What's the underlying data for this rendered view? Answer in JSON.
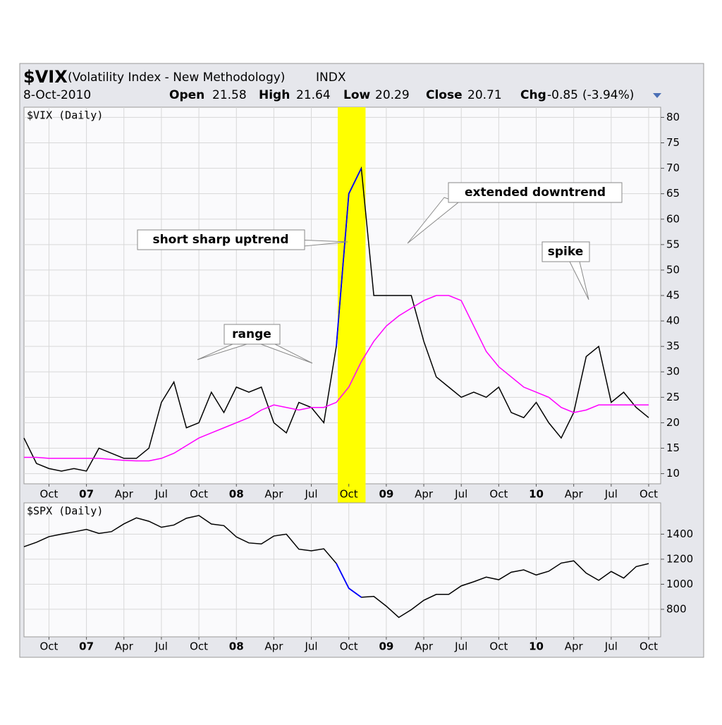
{
  "header": {
    "symbol": "$VIX",
    "name": "(Volatility Index - New Methodology)",
    "exchange": "INDX",
    "date": "8-Oct-2010",
    "open_label": "Open",
    "open": 21.58,
    "high_label": "High",
    "high": 21.64,
    "low_label": "Low",
    "low": 20.29,
    "close_label": "Close",
    "close": 20.71,
    "chg_label": "Chg",
    "chg": -0.85,
    "chg_pct": "(-3.94%)"
  },
  "chart_data": [
    {
      "type": "line",
      "subtitle": "$VIX (Daily)",
      "x": [
        "2006-08",
        "2006-09",
        "2006-10",
        "2006-11",
        "2006-12",
        "2007-01",
        "2007-02",
        "2007-03",
        "2007-04",
        "2007-05",
        "2007-06",
        "2007-07",
        "2007-08",
        "2007-09",
        "2007-10",
        "2007-11",
        "2007-12",
        "2008-01",
        "2008-02",
        "2008-03",
        "2008-04",
        "2008-05",
        "2008-06",
        "2008-07",
        "2008-08",
        "2008-09",
        "2008-10",
        "2008-11",
        "2008-12",
        "2009-01",
        "2009-02",
        "2009-03",
        "2009-04",
        "2009-05",
        "2009-06",
        "2009-07",
        "2009-08",
        "2009-09",
        "2009-10",
        "2009-11",
        "2009-12",
        "2010-01",
        "2010-02",
        "2010-03",
        "2010-04",
        "2010-05",
        "2010-06",
        "2010-07",
        "2010-08",
        "2010-09",
        "2010-10"
      ],
      "series": [
        {
          "color": "#000000",
          "values": [
            17,
            12,
            11,
            10.5,
            11,
            10.5,
            15,
            14,
            13,
            13,
            15,
            24,
            28,
            19,
            20,
            26,
            22,
            27,
            26,
            27,
            20,
            18,
            24,
            23,
            20,
            35,
            65,
            70,
            45,
            45,
            45,
            45,
            36,
            29,
            27,
            25,
            26,
            25,
            27,
            22,
            21,
            24,
            20,
            17,
            22,
            33,
            35,
            24,
            26,
            23,
            21
          ]
        },
        {
          "color": "#ff00ff",
          "values": [
            13.2,
            13.2,
            13,
            13,
            13,
            13,
            13,
            12.8,
            12.6,
            12.5,
            12.5,
            13,
            14,
            15.5,
            17,
            18,
            19,
            20,
            21,
            22.5,
            23.5,
            23,
            22.5,
            23,
            23,
            24,
            27,
            32,
            36,
            39,
            41,
            42.5,
            44,
            45,
            45,
            44,
            39,
            34,
            31,
            29,
            27,
            26,
            25,
            23,
            22,
            22.5,
            23.5,
            23.5,
            23.5,
            23.5,
            23.5
          ]
        }
      ],
      "xlim": [
        "2006-08",
        "2010-10"
      ],
      "xticks": [
        {
          "value": "2006-10",
          "label": "Oct"
        },
        {
          "value": "2007-01",
          "label": "07"
        },
        {
          "value": "2007-04",
          "label": "Apr"
        },
        {
          "value": "2007-07",
          "label": "Jul"
        },
        {
          "value": "2007-10",
          "label": "Oct"
        },
        {
          "value": "2008-01",
          "label": "08"
        },
        {
          "value": "2008-04",
          "label": "Apr"
        },
        {
          "value": "2008-07",
          "label": "Jul"
        },
        {
          "value": "2008-10",
          "label": "Oct"
        },
        {
          "value": "2009-01",
          "label": "09"
        },
        {
          "value": "2009-04",
          "label": "Apr"
        },
        {
          "value": "2009-07",
          "label": "Jul"
        },
        {
          "value": "2009-10",
          "label": "Oct"
        },
        {
          "value": "2010-01",
          "label": "10"
        },
        {
          "value": "2010-04",
          "label": "Apr"
        },
        {
          "value": "2010-07",
          "label": "Jul"
        },
        {
          "value": "2010-10",
          "label": "Oct"
        }
      ],
      "ylim": [
        8,
        82
      ],
      "yticks": [
        10,
        15,
        20,
        25,
        30,
        35,
        40,
        45,
        50,
        55,
        60,
        65,
        70,
        75,
        80
      ],
      "grid": true,
      "highlight": {
        "from": "2008-09",
        "to": "2008-11",
        "color": "#ffff00",
        "line_color": "#0000ff"
      },
      "annotations": [
        {
          "text": "short sharp uptrend",
          "color": "#008000"
        },
        {
          "text": "range",
          "color": "#0000ff"
        },
        {
          "text": "extended downtrend",
          "color": "#ff0000"
        },
        {
          "text": "spike",
          "color": "#ff0000"
        }
      ]
    },
    {
      "type": "line",
      "subtitle": "$SPX (Daily)",
      "x": [
        "2006-08",
        "2006-09",
        "2006-10",
        "2006-11",
        "2006-12",
        "2007-01",
        "2007-02",
        "2007-03",
        "2007-04",
        "2007-05",
        "2007-06",
        "2007-07",
        "2007-08",
        "2007-09",
        "2007-10",
        "2007-11",
        "2007-12",
        "2008-01",
        "2008-02",
        "2008-03",
        "2008-04",
        "2008-05",
        "2008-06",
        "2008-07",
        "2008-08",
        "2008-09",
        "2008-10",
        "2008-11",
        "2008-12",
        "2009-01",
        "2009-02",
        "2009-03",
        "2009-04",
        "2009-05",
        "2009-06",
        "2009-07",
        "2009-08",
        "2009-09",
        "2009-10",
        "2009-11",
        "2009-12",
        "2010-01",
        "2010-02",
        "2010-03",
        "2010-04",
        "2010-05",
        "2010-06",
        "2010-07",
        "2010-08",
        "2010-09",
        "2010-10"
      ],
      "series": [
        {
          "color": "#000000",
          "values": [
            1300,
            1335,
            1380,
            1400,
            1418,
            1438,
            1406,
            1420,
            1482,
            1530,
            1503,
            1455,
            1473,
            1527,
            1549,
            1481,
            1468,
            1378,
            1330,
            1322,
            1385,
            1400,
            1280,
            1267,
            1283,
            1166,
            968,
            896,
            903,
            825,
            735,
            797,
            872,
            919,
            919,
            987,
            1020,
            1057,
            1036,
            1096,
            1115,
            1074,
            1104,
            1169,
            1187,
            1089,
            1031,
            1102,
            1049,
            1141,
            1165
          ]
        }
      ],
      "xlim": [
        "2006-08",
        "2010-10"
      ],
      "xticks": [
        {
          "value": "2006-10",
          "label": "Oct"
        },
        {
          "value": "2007-01",
          "label": "07"
        },
        {
          "value": "2007-04",
          "label": "Apr"
        },
        {
          "value": "2007-07",
          "label": "Jul"
        },
        {
          "value": "2007-10",
          "label": "Oct"
        },
        {
          "value": "2008-01",
          "label": "08"
        },
        {
          "value": "2008-04",
          "label": "Apr"
        },
        {
          "value": "2008-07",
          "label": "Jul"
        },
        {
          "value": "2008-10",
          "label": "Oct"
        },
        {
          "value": "2009-01",
          "label": "09"
        },
        {
          "value": "2009-04",
          "label": "Apr"
        },
        {
          "value": "2009-07",
          "label": "Jul"
        },
        {
          "value": "2009-10",
          "label": "Oct"
        },
        {
          "value": "2010-01",
          "label": "10"
        },
        {
          "value": "2010-04",
          "label": "Apr"
        },
        {
          "value": "2010-07",
          "label": "Jul"
        },
        {
          "value": "2010-10",
          "label": "Oct"
        }
      ],
      "ylim": [
        580,
        1650
      ],
      "yticks": [
        800,
        1000,
        1200,
        1400
      ],
      "grid": true,
      "highlight": {
        "from": "2008-09",
        "to": "2008-11",
        "color": "#ffff00",
        "line_color": "#0000ff"
      }
    }
  ]
}
